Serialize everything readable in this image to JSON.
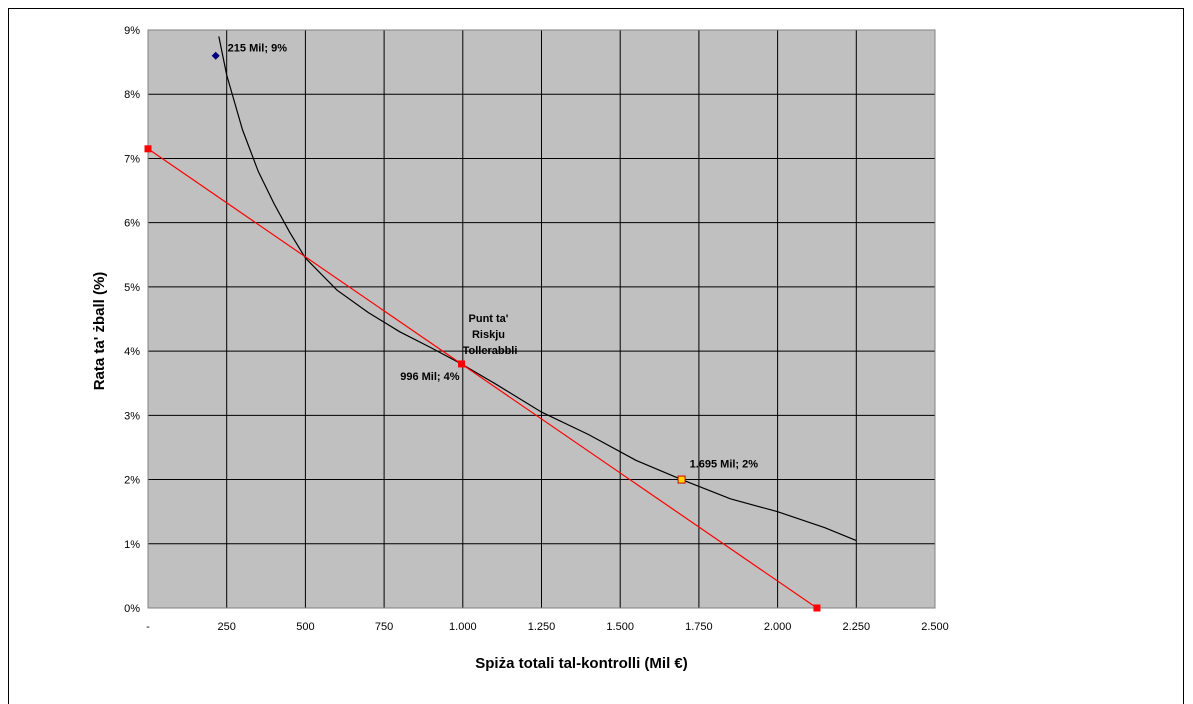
{
  "chart_data": {
    "type": "scatter",
    "title": "",
    "xlabel": "Spiża totali tal-kontrolli (Mil €)",
    "ylabel": "Rata ta' żball (%)",
    "xlim": [
      0,
      2500
    ],
    "ylim": [
      0,
      9
    ],
    "x_ticks": [
      {
        "value": 0,
        "label": "-"
      },
      {
        "value": 250,
        "label": "250"
      },
      {
        "value": 500,
        "label": "500"
      },
      {
        "value": 750,
        "label": "750"
      },
      {
        "value": 1000,
        "label": "1.000"
      },
      {
        "value": 1250,
        "label": "1.250"
      },
      {
        "value": 1500,
        "label": "1.500"
      },
      {
        "value": 1750,
        "label": "1.750"
      },
      {
        "value": 2000,
        "label": "2.000"
      },
      {
        "value": 2250,
        "label": "2.250"
      },
      {
        "value": 2500,
        "label": "2.500"
      }
    ],
    "y_ticks": [
      {
        "value": 0,
        "label": "0%"
      },
      {
        "value": 1,
        "label": "1%"
      },
      {
        "value": 2,
        "label": "2%"
      },
      {
        "value": 3,
        "label": "3%"
      },
      {
        "value": 4,
        "label": "4%"
      },
      {
        "value": 5,
        "label": "5%"
      },
      {
        "value": 6,
        "label": "6%"
      },
      {
        "value": 7,
        "label": "7%"
      },
      {
        "value": 8,
        "label": "8%"
      },
      {
        "value": 9,
        "label": "9%"
      }
    ],
    "grid": true,
    "plot_background": "#c0c0c0",
    "series": [
      {
        "kind": "curve",
        "color": "#000000",
        "x": [
          225,
          250,
          300,
          350,
          400,
          450,
          500,
          600,
          700,
          800,
          900,
          996,
          1100,
          1250,
          1400,
          1550,
          1695,
          1850,
          2000,
          2150,
          2250
        ],
        "y": [
          8.9,
          8.3,
          7.45,
          6.8,
          6.3,
          5.85,
          5.45,
          4.95,
          4.6,
          4.3,
          4.05,
          3.8,
          3.5,
          3.05,
          2.7,
          2.3,
          2.0,
          1.7,
          1.5,
          1.25,
          1.05
        ]
      },
      {
        "kind": "line",
        "color": "#ff0000",
        "x": [
          0,
          996,
          2125
        ],
        "y": [
          7.15,
          3.8,
          0
        ]
      }
    ],
    "points": [
      {
        "x": 215,
        "y": 8.6,
        "marker": "diamond",
        "color": "#000080",
        "label": "215 Mil; 9%"
      },
      {
        "x": 996,
        "y": 3.8,
        "marker": "square",
        "color": "#ff0000",
        "label": "996 Mil; 4%"
      },
      {
        "x": 1695,
        "y": 2.0,
        "marker": "square-open",
        "color": "#ffd700",
        "label": "1.695 Mil; 2%"
      },
      {
        "x": 0,
        "y": 7.15,
        "marker": "square",
        "color": "#ff0000",
        "label": ""
      },
      {
        "x": 2125,
        "y": 0,
        "marker": "square",
        "color": "#ff0000",
        "label": ""
      }
    ],
    "annotations": [
      {
        "text_lines": [
          "Punt ta'",
          "Riskju",
          "Tollerabbli"
        ]
      }
    ]
  }
}
